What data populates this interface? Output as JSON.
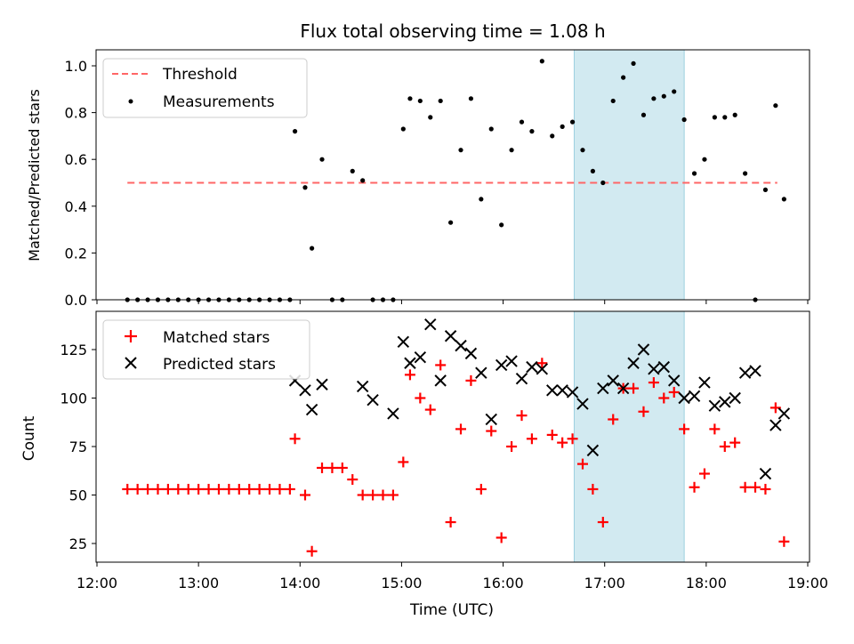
{
  "chart_data": [
    {
      "type": "scatter",
      "title": "Flux total observing time = 1.08 h",
      "xlabel": "",
      "ylabel": "Matched/Predicted stars",
      "xlim": [
        "12:00",
        "19:00"
      ],
      "ylim": [
        0,
        1.07
      ],
      "yticks": [
        "0.0",
        "0.2",
        "0.4",
        "0.6",
        "0.8",
        "1.0"
      ],
      "highlight_span": {
        "start": "16:42",
        "end": "17:47",
        "color": "#add8e6"
      },
      "legend": {
        "position": "top-left",
        "entries": [
          "Threshold",
          "Measurements"
        ]
      },
      "series": [
        {
          "name": "Threshold",
          "style": "dashed-line",
          "color": "#ff6666",
          "x": [
            "12:18",
            "18:42"
          ],
          "y": [
            0.5,
            0.5
          ]
        },
        {
          "name": "Measurements",
          "style": "dot",
          "color": "#000000",
          "x": [
            "12:18",
            "12:24",
            "12:30",
            "12:36",
            "12:42",
            "12:48",
            "12:54",
            "13:00",
            "13:06",
            "13:12",
            "13:18",
            "13:24",
            "13:30",
            "13:36",
            "13:42",
            "13:48",
            "13:54",
            "13:57",
            "14:03",
            "14:07",
            "14:13",
            "14:19",
            "14:25",
            "14:31",
            "14:37",
            "14:43",
            "14:49",
            "14:55",
            "15:01",
            "15:05",
            "15:11",
            "15:17",
            "15:23",
            "15:29",
            "15:35",
            "15:41",
            "15:47",
            "15:53",
            "15:59",
            "16:05",
            "16:11",
            "16:17",
            "16:23",
            "16:29",
            "16:35",
            "16:41",
            "16:47",
            "16:53",
            "16:59",
            "17:05",
            "17:11",
            "17:17",
            "17:23",
            "17:29",
            "17:35",
            "17:41",
            "17:47",
            "17:53",
            "17:59",
            "18:05",
            "18:11",
            "18:17",
            "18:23",
            "18:29",
            "18:35",
            "18:41",
            "18:46"
          ],
          "y": [
            0,
            0,
            0,
            0,
            0,
            0,
            0,
            0,
            0,
            0,
            0,
            0,
            0,
            0,
            0,
            0,
            0,
            0.72,
            0.48,
            0.22,
            0.6,
            0,
            0,
            0.55,
            0.51,
            0,
            0,
            0,
            0.73,
            0.86,
            0.85,
            0.78,
            0.85,
            0.33,
            0.64,
            0.86,
            0.43,
            0.73,
            0.32,
            0.64,
            0.76,
            0.72,
            1.02,
            0.7,
            0.74,
            0.76,
            0.64,
            0.55,
            0.5,
            0.85,
            0.95,
            1.01,
            0.79,
            0.86,
            0.87,
            0.89,
            0.77,
            0.54,
            0.6,
            0.78,
            0.78,
            0.79,
            0.54,
            0,
            0.47,
            0.83,
            0.43
          ]
        }
      ]
    },
    {
      "type": "scatter",
      "title": "",
      "xlabel": "Time (UTC)",
      "ylabel": "Count",
      "xlim": [
        "12:00",
        "19:00"
      ],
      "xticks": [
        "12:00",
        "13:00",
        "14:00",
        "15:00",
        "16:00",
        "17:00",
        "18:00",
        "19:00"
      ],
      "ylim": [
        14,
        145
      ],
      "yticks": [
        "25",
        "50",
        "75",
        "100",
        "125"
      ],
      "highlight_span": {
        "start": "16:42",
        "end": "17:47",
        "color": "#add8e6"
      },
      "legend": {
        "position": "top-left",
        "entries": [
          "Matched stars",
          "Predicted stars"
        ]
      },
      "series": [
        {
          "name": "Matched stars",
          "marker": "plus",
          "color": "#ff0000",
          "x": [
            "12:18",
            "12:24",
            "12:30",
            "12:36",
            "12:42",
            "12:48",
            "12:54",
            "13:00",
            "13:06",
            "13:12",
            "13:18",
            "13:24",
            "13:30",
            "13:36",
            "13:42",
            "13:48",
            "13:54",
            "13:57",
            "14:03",
            "14:07",
            "14:13",
            "14:19",
            "14:25",
            "14:31",
            "14:37",
            "14:43",
            "14:49",
            "14:55",
            "15:01",
            "15:05",
            "15:11",
            "15:17",
            "15:23",
            "15:29",
            "15:35",
            "15:41",
            "15:47",
            "15:53",
            "15:59",
            "16:05",
            "16:11",
            "16:17",
            "16:23",
            "16:29",
            "16:35",
            "16:41",
            "16:47",
            "16:53",
            "16:59",
            "17:05",
            "17:11",
            "17:17",
            "17:23",
            "17:29",
            "17:35",
            "17:41",
            "17:47",
            "17:53",
            "17:59",
            "18:05",
            "18:11",
            "18:17",
            "18:23",
            "18:29",
            "18:35",
            "18:41",
            "18:46"
          ],
          "y": [
            53,
            53,
            53,
            53,
            53,
            53,
            53,
            53,
            53,
            53,
            53,
            53,
            53,
            53,
            53,
            53,
            53,
            79,
            50,
            21,
            64,
            64,
            64,
            58,
            50,
            50,
            50,
            50,
            67,
            112,
            100,
            94,
            117,
            36,
            84,
            109,
            53,
            83,
            28,
            75,
            91,
            79,
            118,
            81,
            77,
            79,
            66,
            53,
            36,
            89,
            105,
            105,
            93,
            108,
            100,
            103,
            84,
            54,
            61,
            84,
            75,
            77,
            54,
            54,
            53,
            95,
            26
          ]
        },
        {
          "name": "Predicted stars",
          "marker": "x",
          "color": "#000000",
          "x": [
            "13:57",
            "14:03",
            "14:07",
            "14:13",
            "14:37",
            "14:43",
            "14:55",
            "15:01",
            "15:05",
            "15:11",
            "15:17",
            "15:23",
            "15:29",
            "15:35",
            "15:41",
            "15:47",
            "15:53",
            "15:59",
            "16:05",
            "16:11",
            "16:17",
            "16:23",
            "16:29",
            "16:35",
            "16:41",
            "16:47",
            "16:53",
            "16:59",
            "17:05",
            "17:11",
            "17:17",
            "17:23",
            "17:29",
            "17:35",
            "17:41",
            "17:47",
            "17:53",
            "17:59",
            "18:05",
            "18:11",
            "18:17",
            "18:23",
            "18:29",
            "18:35",
            "18:41",
            "18:46"
          ],
          "y": [
            109,
            104,
            94,
            107,
            106,
            99,
            92,
            129,
            118,
            121,
            138,
            109,
            132,
            127,
            123,
            113,
            89,
            117,
            119,
            110,
            116,
            115,
            104,
            104,
            103,
            97,
            73,
            105,
            109,
            105,
            118,
            125,
            115,
            116,
            109,
            100,
            101,
            108,
            96,
            98,
            100,
            113,
            114,
            61,
            86,
            92
          ]
        }
      ]
    }
  ]
}
